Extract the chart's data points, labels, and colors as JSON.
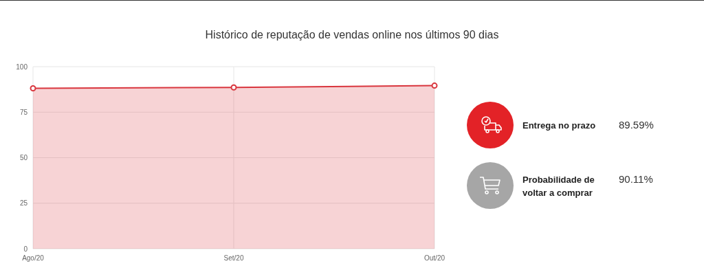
{
  "chart_data": [
    {
      "type": "area",
      "title": "Histórico de reputação de vendas online nos últimos 90 dias",
      "categories": [
        "Ago/20",
        "Set/20",
        "Out/20"
      ],
      "series": [
        {
          "color": "#d9363e",
          "values": [
            88.1,
            88.6,
            89.6
          ]
        }
      ],
      "ylim": [
        0,
        100
      ],
      "yticks": [
        0,
        25,
        50,
        75,
        100
      ],
      "grid": true,
      "marker": "circle"
    },
    {
      "type": "other",
      "categories": [
        "Entrega no prazo",
        "Probabilidade de voltar a comprar"
      ],
      "value_labels": [
        "89.59%",
        "90.11%"
      ],
      "colors": [
        "#e32227",
        "#a6a6a6"
      ]
    }
  ]
}
